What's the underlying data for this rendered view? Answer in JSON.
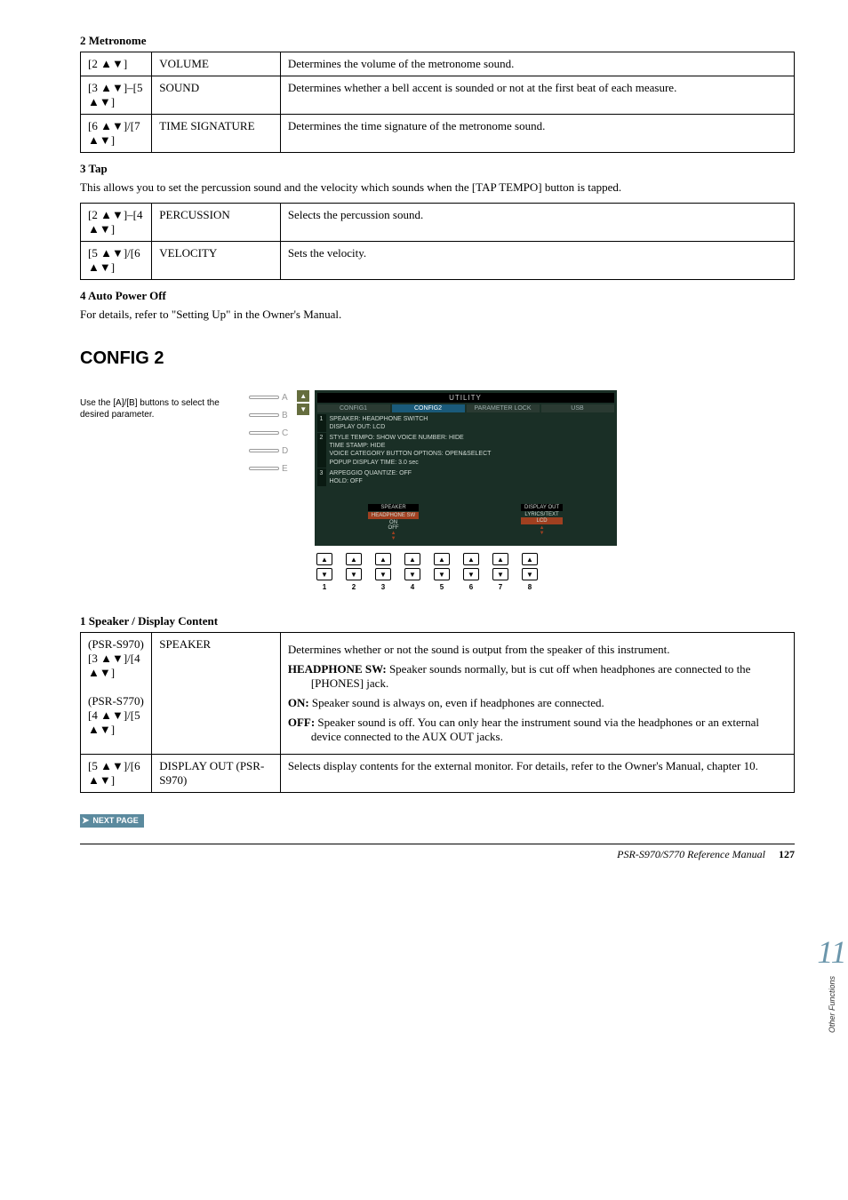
{
  "sections": {
    "metronome": {
      "title": "2 Metronome",
      "rows": [
        {
          "keys": "[2 ▲▼]",
          "name": "VOLUME",
          "desc": "Determines the volume of the metronome sound."
        },
        {
          "keys": "[3 ▲▼]–[5 ▲▼]",
          "name": "SOUND",
          "desc": "Determines whether a bell accent is sounded or not at the first beat of each measure."
        },
        {
          "keys": "[6 ▲▼]/[7 ▲▼]",
          "name": "TIME SIGNATURE",
          "desc": "Determines the time signature of the metronome sound."
        }
      ]
    },
    "tap": {
      "title": "3 Tap",
      "intro": "This allows you to set the percussion sound and the velocity which sounds when the [TAP TEMPO] button is tapped.",
      "rows": [
        {
          "keys": "[2 ▲▼]–[4 ▲▼]",
          "name": "PERCUSSION",
          "desc": "Selects the percussion sound."
        },
        {
          "keys": "[5 ▲▼]/[6 ▲▼]",
          "name": "VELOCITY",
          "desc": "Sets the velocity."
        }
      ]
    },
    "autopower": {
      "title": "4 Auto Power Off",
      "intro": "For details, refer to \"Setting Up\" in the Owner's Manual."
    }
  },
  "config2": {
    "heading": "CONFIG 2",
    "caption": "Use the [A]/[B] buttons to select the desired parameter.",
    "abcde": [
      "A",
      "B",
      "C",
      "D",
      "E"
    ],
    "lcd": {
      "utility": "UTILITY",
      "tabs": [
        "CONFIG1",
        "CONFIG2",
        "PARAMETER LOCK",
        "USB"
      ],
      "activeTab": 1,
      "rows": [
        {
          "n": "1",
          "lines": [
            "SPEAKER: HEADPHONE SWITCH",
            "DISPLAY OUT: LCD"
          ]
        },
        {
          "n": "2",
          "lines": [
            "STYLE TEMPO: SHOW          VOICE NUMBER: HIDE",
            "TIME STAMP: HIDE",
            "VOICE CATEGORY BUTTON OPTIONS: OPEN&SELECT",
            "POPUP DISPLAY TIME: 3.0 sec"
          ]
        },
        {
          "n": "3",
          "lines": [
            "ARPEGGIO     QUANTIZE: OFF",
            "                    HOLD: OFF"
          ]
        }
      ],
      "bottom": [
        {
          "hdr": "SPEAKER",
          "sel": "HEADPHONE SW",
          "opts": [
            "ON",
            "OFF"
          ]
        },
        {
          "hdr": "DISPLAY OUT",
          "sel": "LCD",
          "opts": [
            "LYRICS/TEXT",
            ""
          ]
        }
      ]
    },
    "buttonNums": [
      "1",
      "2",
      "3",
      "4",
      "5",
      "6",
      "7",
      "8"
    ]
  },
  "speakerDisplay": {
    "title": "1 Speaker / Display Content",
    "rows": [
      {
        "keys": "(PSR-S970)\n[3 ▲▼]/[4 ▲▼]\n\n(PSR-S770)\n[4 ▲▼]/[5 ▲▼]",
        "name": "SPEAKER",
        "desc_intro": "Determines whether or not the sound is output from the speaker of this instrument.",
        "items": [
          {
            "label": "HEADPHONE SW:",
            "text": "Speaker sounds normally, but is cut off when headphones are connected to the [PHONES] jack."
          },
          {
            "label": "ON:",
            "text": "Speaker sound is always on, even if headphones are connected."
          },
          {
            "label": "OFF:",
            "text": "Speaker sound is off. You can only hear the instrument sound via the headphones or an external device connected to the AUX OUT jacks."
          }
        ]
      },
      {
        "keys": "[5 ▲▼]/[6 ▲▼]",
        "name": "DISPLAY OUT (PSR-S970)",
        "desc_intro": "Selects display contents for the external monitor. For details, refer to the Owner's Manual, chapter 10."
      }
    ]
  },
  "nextPage": "NEXT PAGE",
  "footer": {
    "model": "PSR-S970/S770 Reference Manual",
    "page": "127"
  },
  "sideTab": {
    "num": "11",
    "label": "Other Functions"
  }
}
